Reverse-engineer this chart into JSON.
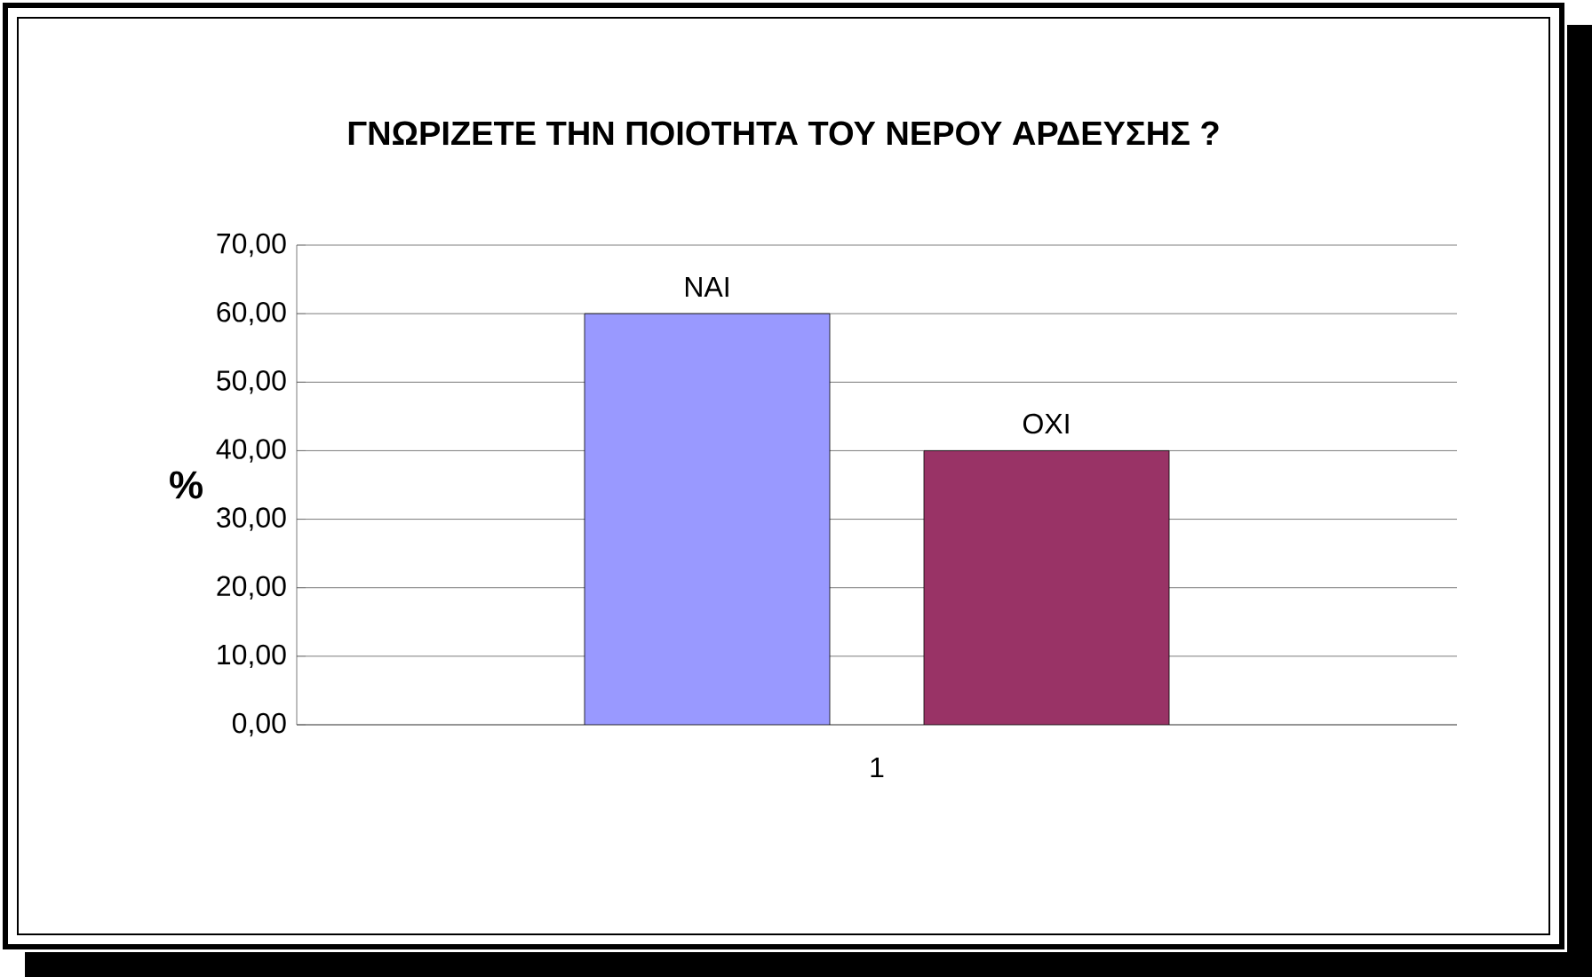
{
  "chart_data": {
    "type": "bar",
    "title": "ΓΝΩΡΙΖΕΤΕ ΤΗΝ ΠΟΙΟΤΗΤΑ ΤΟΥ ΝΕΡΟΥ ΑΡΔΕΥΣΗΣ ?",
    "ylabel": "%",
    "categories": [
      "1"
    ],
    "series": [
      {
        "name": "ΝΑΙ",
        "color": "#9999ff",
        "values": [
          60
        ]
      },
      {
        "name": "ΟΧΙ",
        "color": "#993366",
        "values": [
          40
        ]
      }
    ],
    "ylim": [
      0,
      70
    ],
    "yticks": [
      {
        "value": 0,
        "label": "0,00"
      },
      {
        "value": 10,
        "label": "10,00"
      },
      {
        "value": 20,
        "label": "20,00"
      },
      {
        "value": 30,
        "label": "30,00"
      },
      {
        "value": 40,
        "label": "40,00"
      },
      {
        "value": 50,
        "label": "50,00"
      },
      {
        "value": 60,
        "label": "60,00"
      },
      {
        "value": 70,
        "label": "70,00"
      }
    ],
    "grid": "y",
    "legend": false
  }
}
